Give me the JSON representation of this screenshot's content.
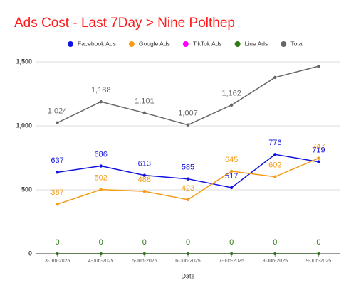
{
  "chart_data": {
    "type": "line",
    "title": "Ads Cost - Last 7Day > Nine Polthep",
    "x_label": "Date",
    "categories": [
      "3-Jun-2025",
      "4-Jun-2025",
      "5-Jun-2025",
      "6-Jun-2025",
      "7-Jun-2025",
      "8-Jun-2025",
      "9-Jun-2025"
    ],
    "series": [
      {
        "name": "Facebook Ads",
        "color": "#1212e0",
        "values": [
          637,
          686,
          613,
          585,
          517,
          776,
          719
        ],
        "show_labels": true
      },
      {
        "name": "Google Ads",
        "color": "#f59b14",
        "values": [
          387,
          502,
          488,
          423,
          645,
          602,
          747
        ],
        "show_labels": true
      },
      {
        "name": "TikTok Ads",
        "color": "#ff00ff",
        "values": [
          0,
          0,
          0,
          0,
          0,
          0,
          0
        ],
        "show_labels": false
      },
      {
        "name": "Line Ads",
        "color": "#2f7d1a",
        "values": [
          0,
          0,
          0,
          0,
          0,
          0,
          0
        ],
        "show_labels": true
      },
      {
        "name": "Total",
        "color": "#666666",
        "values": [
          1024,
          1188,
          1101,
          1007,
          1162,
          1378,
          1466
        ],
        "value_labels": [
          "1,024",
          "1,188",
          "1,101",
          "1,007",
          "1,162",
          null,
          null
        ],
        "show_labels": true
      }
    ],
    "ylim": [
      0,
      1500
    ],
    "yticks": [
      0,
      500,
      {
        "value": 1000,
        "label": "1,000"
      },
      {
        "value": 1500,
        "label": "1,500"
      }
    ],
    "grid": true,
    "legend": "top",
    "title_color": "#ff1a1a"
  }
}
